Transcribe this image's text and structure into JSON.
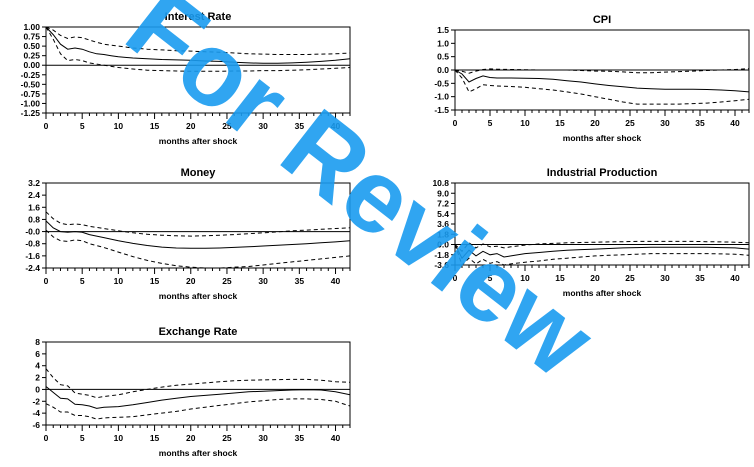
{
  "watermark": {
    "text": "For Review",
    "color": "#1a9cf0"
  },
  "chart_data": [
    {
      "type": "line",
      "title": "Interest Rate",
      "xlabel": "months after shock",
      "ylabel": "",
      "xlim": [
        0,
        42
      ],
      "ylim": [
        -1.25,
        1.0
      ],
      "xticks": [
        0,
        5,
        10,
        15,
        20,
        25,
        30,
        35,
        40
      ],
      "yticks": [
        "1.00",
        "0.75",
        "0.50",
        "0.25",
        "0.00",
        "-0.25",
        "-0.50",
        "-0.75",
        "-1.00",
        "-1.25"
      ],
      "zero_line": true,
      "series": [
        {
          "role": "response",
          "style": "solid",
          "x": [
            0,
            1,
            2,
            3,
            4,
            5,
            6,
            7,
            8,
            9,
            10,
            12,
            14,
            16,
            18,
            20,
            22,
            24,
            26,
            28,
            30,
            32,
            34,
            36,
            38,
            40,
            42
          ],
          "y": [
            1.0,
            0.8,
            0.55,
            0.42,
            0.45,
            0.42,
            0.35,
            0.3,
            0.28,
            0.25,
            0.22,
            0.19,
            0.17,
            0.15,
            0.14,
            0.13,
            0.11,
            0.1,
            0.08,
            0.06,
            0.05,
            0.05,
            0.06,
            0.08,
            0.1,
            0.13,
            0.17
          ]
        },
        {
          "role": "upper band",
          "style": "dashed",
          "x": [
            0,
            1,
            2,
            3,
            4,
            5,
            6,
            7,
            8,
            10,
            12,
            14,
            16,
            18,
            20,
            22,
            24,
            26,
            28,
            30,
            32,
            34,
            36,
            38,
            40,
            42
          ],
          "y": [
            1.0,
            0.92,
            0.78,
            0.7,
            0.74,
            0.72,
            0.66,
            0.6,
            0.55,
            0.5,
            0.45,
            0.42,
            0.4,
            0.38,
            0.37,
            0.35,
            0.34,
            0.32,
            0.3,
            0.29,
            0.28,
            0.28,
            0.28,
            0.29,
            0.3,
            0.32
          ]
        },
        {
          "role": "lower band",
          "style": "dashed",
          "x": [
            0,
            1,
            2,
            3,
            4,
            5,
            6,
            8,
            10,
            12,
            14,
            16,
            18,
            20,
            22,
            24,
            26,
            28,
            30,
            32,
            34,
            36,
            38,
            40,
            42
          ],
          "y": [
            1.0,
            0.68,
            0.3,
            0.12,
            0.15,
            0.12,
            0.06,
            0.0,
            -0.06,
            -0.1,
            -0.13,
            -0.14,
            -0.15,
            -0.16,
            -0.16,
            -0.16,
            -0.15,
            -0.15,
            -0.14,
            -0.14,
            -0.13,
            -0.12,
            -0.1,
            -0.08,
            -0.06
          ]
        }
      ]
    },
    {
      "type": "line",
      "title": "CPI",
      "xlabel": "months after shock",
      "ylabel": "",
      "xlim": [
        0,
        42
      ],
      "ylim": [
        -1.5,
        1.5
      ],
      "xticks": [
        0,
        5,
        10,
        15,
        20,
        25,
        30,
        35,
        40
      ],
      "yticks": [
        "1.5",
        "1.0",
        "0.5",
        "0.0",
        "-0.5",
        "-1.0",
        "-1.5"
      ],
      "zero_line": true,
      "series": [
        {
          "role": "response",
          "style": "solid",
          "x": [
            0,
            1,
            2,
            3,
            4,
            5,
            6,
            8,
            10,
            12,
            14,
            16,
            18,
            20,
            22,
            24,
            26,
            28,
            30,
            32,
            34,
            36,
            38,
            40,
            42
          ],
          "y": [
            0.0,
            -0.15,
            -0.45,
            -0.32,
            -0.22,
            -0.28,
            -0.3,
            -0.3,
            -0.31,
            -0.32,
            -0.35,
            -0.4,
            -0.45,
            -0.52,
            -0.58,
            -0.63,
            -0.68,
            -0.7,
            -0.72,
            -0.72,
            -0.72,
            -0.73,
            -0.75,
            -0.78,
            -0.82
          ]
        },
        {
          "role": "upper band",
          "style": "dashed",
          "x": [
            0,
            1,
            2,
            3,
            4,
            5,
            6,
            8,
            10,
            12,
            14,
            16,
            18,
            20,
            22,
            24,
            26,
            28,
            30,
            32,
            34,
            36,
            38,
            40,
            42
          ],
          "y": [
            0.0,
            -0.05,
            -0.12,
            -0.04,
            0.02,
            0.04,
            0.03,
            0.02,
            0.01,
            0.0,
            0.0,
            0.0,
            -0.02,
            -0.04,
            -0.05,
            -0.07,
            -0.1,
            -0.1,
            -0.08,
            -0.06,
            -0.04,
            -0.02,
            0.0,
            0.02,
            0.05
          ]
        },
        {
          "role": "lower band",
          "style": "dashed",
          "x": [
            0,
            1,
            2,
            3,
            4,
            5,
            6,
            8,
            10,
            12,
            14,
            16,
            18,
            20,
            22,
            24,
            26,
            28,
            30,
            32,
            34,
            36,
            38,
            40,
            42
          ],
          "y": [
            0.0,
            -0.3,
            -0.82,
            -0.7,
            -0.55,
            -0.58,
            -0.6,
            -0.62,
            -0.65,
            -0.7,
            -0.75,
            -0.82,
            -0.9,
            -1.0,
            -1.1,
            -1.2,
            -1.28,
            -1.28,
            -1.28,
            -1.28,
            -1.26,
            -1.24,
            -1.2,
            -1.15,
            -1.1
          ]
        }
      ]
    },
    {
      "type": "line",
      "title": "Money",
      "xlabel": "months after shock",
      "ylabel": "",
      "xlim": [
        0,
        42
      ],
      "ylim": [
        -2.4,
        3.2
      ],
      "xticks": [
        0,
        5,
        10,
        15,
        20,
        25,
        30,
        35,
        40
      ],
      "yticks": [
        "3.2",
        "2.4",
        "1.6",
        "0.8",
        "-0.0",
        "-0.8",
        "-1.6",
        "-2.4"
      ],
      "zero_line": true,
      "series": [
        {
          "role": "response",
          "style": "solid",
          "x": [
            0,
            1,
            2,
            3,
            4,
            5,
            6,
            8,
            10,
            12,
            14,
            16,
            18,
            20,
            22,
            24,
            26,
            28,
            30,
            32,
            34,
            36,
            38,
            40,
            42
          ],
          "y": [
            0.7,
            0.25,
            0.0,
            -0.05,
            0.0,
            -0.05,
            -0.2,
            -0.4,
            -0.6,
            -0.78,
            -0.92,
            -1.02,
            -1.08,
            -1.1,
            -1.1,
            -1.08,
            -1.04,
            -1.0,
            -0.95,
            -0.9,
            -0.85,
            -0.8,
            -0.74,
            -0.68,
            -0.6
          ]
        },
        {
          "role": "upper band",
          "style": "dashed",
          "x": [
            0,
            1,
            2,
            3,
            4,
            5,
            6,
            8,
            10,
            12,
            14,
            16,
            18,
            20,
            22,
            24,
            26,
            28,
            30,
            32,
            34,
            36,
            38,
            40,
            42
          ],
          "y": [
            1.3,
            0.85,
            0.55,
            0.45,
            0.5,
            0.45,
            0.35,
            0.2,
            0.05,
            -0.08,
            -0.18,
            -0.24,
            -0.28,
            -0.3,
            -0.28,
            -0.24,
            -0.2,
            -0.14,
            -0.08,
            -0.02,
            0.05,
            0.1,
            0.15,
            0.2,
            0.25
          ]
        },
        {
          "role": "lower band",
          "style": "dashed",
          "x": [
            0,
            1,
            2,
            3,
            4,
            5,
            6,
            8,
            10,
            12,
            14,
            16,
            18,
            20,
            22,
            24,
            26,
            28,
            30,
            32,
            34,
            36,
            38,
            40,
            42
          ],
          "y": [
            0.1,
            -0.35,
            -0.6,
            -0.65,
            -0.55,
            -0.6,
            -0.8,
            -1.05,
            -1.35,
            -1.65,
            -1.9,
            -2.1,
            -2.25,
            -2.35,
            -2.4,
            -2.4,
            -2.35,
            -2.3,
            -2.2,
            -2.1,
            -2.0,
            -1.9,
            -1.8,
            -1.7,
            -1.6
          ]
        }
      ]
    },
    {
      "type": "line",
      "title": "Industrial Production",
      "xlabel": "months after shock",
      "ylabel": "",
      "xlim": [
        0,
        42
      ],
      "ylim": [
        -3.6,
        10.8
      ],
      "xticks": [
        0,
        5,
        10,
        15,
        20,
        25,
        30,
        35,
        40
      ],
      "yticks": [
        "10.8",
        "9.0",
        "7.2",
        "5.4",
        "3.6",
        "1.8",
        "0.0",
        "-1.8",
        "-3.6"
      ],
      "zero_line": true,
      "series": [
        {
          "role": "response",
          "style": "solid",
          "x": [
            0,
            1,
            2,
            3,
            4,
            5,
            6,
            7,
            8,
            10,
            12,
            14,
            16,
            18,
            20,
            22,
            24,
            26,
            28,
            30,
            32,
            34,
            36,
            38,
            40,
            42
          ],
          "y": [
            0.0,
            -2.4,
            -1.0,
            -2.0,
            -1.2,
            -1.8,
            -1.6,
            -2.2,
            -2.0,
            -1.6,
            -1.4,
            -1.2,
            -1.0,
            -0.9,
            -0.8,
            -0.7,
            -0.6,
            -0.55,
            -0.5,
            -0.5,
            -0.5,
            -0.5,
            -0.5,
            -0.55,
            -0.6,
            -0.8
          ]
        },
        {
          "role": "upper band",
          "style": "dashed",
          "x": [
            0,
            1,
            2,
            3,
            4,
            5,
            6,
            7,
            8,
            10,
            12,
            14,
            16,
            18,
            20,
            22,
            24,
            26,
            28,
            30,
            32,
            34,
            36,
            38,
            40,
            42
          ],
          "y": [
            0.0,
            -1.2,
            0.3,
            -0.6,
            0.1,
            -0.4,
            -0.3,
            -0.6,
            -0.4,
            -0.1,
            0.1,
            0.2,
            0.3,
            0.35,
            0.4,
            0.45,
            0.5,
            0.55,
            0.55,
            0.55,
            0.55,
            0.55,
            0.5,
            0.45,
            0.4,
            0.3
          ]
        },
        {
          "role": "lower band",
          "style": "dashed",
          "x": [
            0,
            1,
            2,
            3,
            4,
            5,
            6,
            7,
            8,
            10,
            12,
            14,
            16,
            18,
            20,
            22,
            24,
            26,
            28,
            30,
            32,
            34,
            36,
            38,
            40,
            42
          ],
          "y": [
            0.0,
            -3.6,
            -2.4,
            -3.4,
            -2.6,
            -3.3,
            -3.0,
            -3.6,
            -3.4,
            -3.1,
            -2.9,
            -2.6,
            -2.4,
            -2.2,
            -2.0,
            -1.9,
            -1.8,
            -1.7,
            -1.6,
            -1.6,
            -1.6,
            -1.6,
            -1.6,
            -1.65,
            -1.7,
            -1.9
          ]
        }
      ]
    },
    {
      "type": "line",
      "title": "Exchange Rate",
      "xlabel": "months after shock",
      "ylabel": "",
      "xlim": [
        0,
        42
      ],
      "ylim": [
        -6,
        8
      ],
      "xticks": [
        0,
        5,
        10,
        15,
        20,
        25,
        30,
        35,
        40
      ],
      "yticks": [
        "8",
        "6",
        "4",
        "2",
        "0",
        "-2",
        "-4",
        "-6"
      ],
      "zero_line": true,
      "series": [
        {
          "role": "response",
          "style": "solid",
          "x": [
            0,
            1,
            2,
            3,
            4,
            5,
            6,
            7,
            8,
            10,
            12,
            14,
            16,
            18,
            20,
            22,
            24,
            26,
            28,
            30,
            32,
            34,
            36,
            38,
            40,
            42
          ],
          "y": [
            0.5,
            -0.5,
            -1.5,
            -1.6,
            -2.5,
            -2.6,
            -2.8,
            -3.2,
            -3.0,
            -2.9,
            -2.6,
            -2.2,
            -1.8,
            -1.5,
            -1.2,
            -1.0,
            -0.8,
            -0.6,
            -0.4,
            -0.3,
            -0.2,
            -0.1,
            -0.05,
            -0.1,
            -0.4,
            -0.9
          ]
        },
        {
          "role": "upper band",
          "style": "dashed",
          "x": [
            0,
            1,
            2,
            3,
            4,
            5,
            6,
            7,
            8,
            10,
            12,
            14,
            16,
            18,
            20,
            22,
            24,
            26,
            28,
            30,
            32,
            34,
            36,
            38,
            40,
            42
          ],
          "y": [
            3.5,
            2.0,
            0.8,
            0.6,
            -0.6,
            -0.8,
            -1.0,
            -1.4,
            -1.2,
            -0.9,
            -0.4,
            0.0,
            0.4,
            0.7,
            0.9,
            1.1,
            1.3,
            1.45,
            1.55,
            1.6,
            1.65,
            1.7,
            1.7,
            1.55,
            1.3,
            1.2
          ]
        },
        {
          "role": "lower band",
          "style": "dashed",
          "x": [
            0,
            1,
            2,
            3,
            4,
            5,
            6,
            7,
            8,
            10,
            12,
            14,
            16,
            18,
            20,
            22,
            24,
            26,
            28,
            30,
            32,
            34,
            36,
            38,
            40,
            42
          ],
          "y": [
            -2.4,
            -3.0,
            -3.8,
            -3.8,
            -4.4,
            -4.4,
            -4.6,
            -5.0,
            -4.8,
            -4.7,
            -4.6,
            -4.3,
            -4.0,
            -3.7,
            -3.3,
            -3.0,
            -2.7,
            -2.4,
            -2.1,
            -1.9,
            -1.7,
            -1.6,
            -1.6,
            -1.7,
            -2.0,
            -2.8
          ]
        }
      ]
    }
  ]
}
